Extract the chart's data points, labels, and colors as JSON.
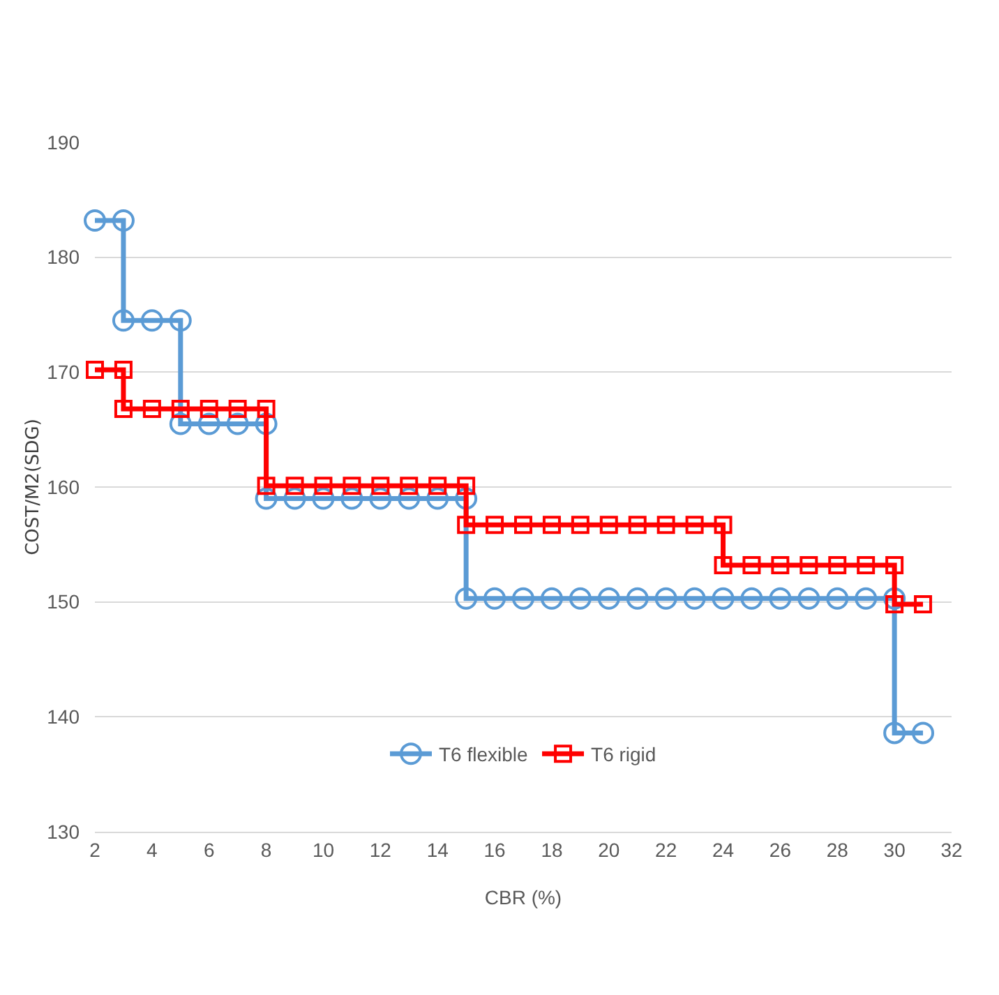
{
  "chart_data": {
    "type": "line",
    "xlabel": "CBR (%)",
    "ylabel": "COST/M2(SDG)",
    "xlim": [
      2,
      32
    ],
    "xticks": [
      2,
      4,
      6,
      8,
      10,
      12,
      14,
      16,
      18,
      20,
      22,
      24,
      26,
      28,
      30,
      32
    ],
    "ylim": [
      130,
      190
    ],
    "yticks": [
      130,
      140,
      150,
      160,
      170,
      180,
      190
    ],
    "grid": "y",
    "legend": "bottom",
    "line_style": "solid",
    "series": [
      {
        "name": "T6 flexible",
        "color": "#5b9bd5",
        "marker": "circle",
        "x": [
          2,
          3,
          3,
          4,
          5,
          5,
          6,
          7,
          8,
          8,
          9,
          10,
          11,
          12,
          13,
          14,
          15,
          15,
          16,
          17,
          18,
          19,
          20,
          21,
          22,
          23,
          24,
          25,
          26,
          27,
          28,
          29,
          30,
          30,
          31
        ],
        "values": [
          183.2,
          183.2,
          174.5,
          174.5,
          174.5,
          165.5,
          165.5,
          165.5,
          165.5,
          159,
          159,
          159,
          159,
          159,
          159,
          159,
          159,
          150.3,
          150.3,
          150.3,
          150.3,
          150.3,
          150.3,
          150.3,
          150.3,
          150.3,
          150.3,
          150.3,
          150.3,
          150.3,
          150.3,
          150.3,
          150.3,
          138.6,
          138.6
        ]
      },
      {
        "name": "T6 rigid",
        "color": "#ff0000",
        "marker": "square",
        "x": [
          2,
          3,
          3,
          4,
          5,
          6,
          7,
          8,
          8,
          9,
          10,
          11,
          12,
          13,
          14,
          15,
          15,
          16,
          17,
          18,
          19,
          20,
          21,
          22,
          23,
          24,
          24,
          25,
          26,
          27,
          28,
          29,
          30,
          30,
          31
        ],
        "values": [
          170.2,
          170.2,
          166.8,
          166.8,
          166.8,
          166.8,
          166.8,
          166.8,
          160.1,
          160.1,
          160.1,
          160.1,
          160.1,
          160.1,
          160.1,
          160.1,
          156.7,
          156.7,
          156.7,
          156.7,
          156.7,
          156.7,
          156.7,
          156.7,
          156.7,
          156.7,
          153.2,
          153.2,
          153.2,
          153.2,
          153.2,
          153.2,
          153.2,
          149.8,
          149.8
        ]
      }
    ]
  }
}
